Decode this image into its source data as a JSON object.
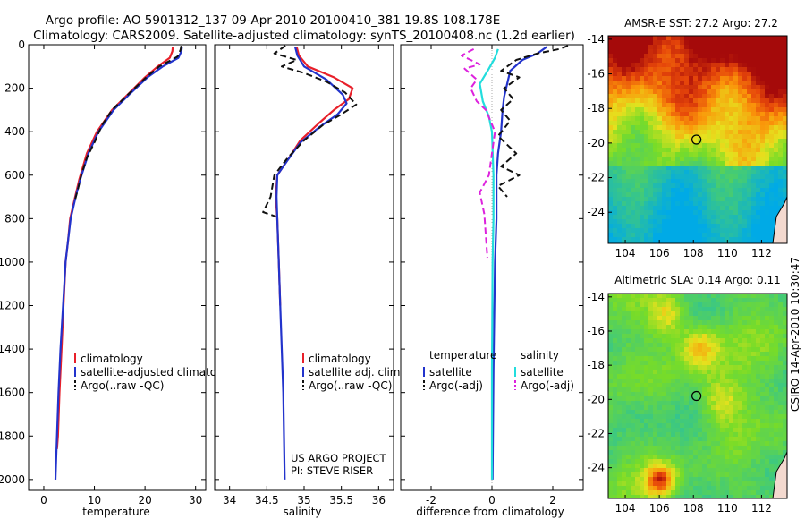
{
  "title_line1": "Argo profile: AO 5901312_137 09-Apr-2010 20100410_381 19.8S 108.178E",
  "title_line2": "Climatology: CARS2009. Satellite-adjusted climatology: synTS_20100408.nc (1.2d earlier)",
  "side_stamp": "CSIRO 14-Apr-2010 10:30:47",
  "colors": {
    "clim": "#e8202a",
    "sat": "#2233cc",
    "argo": "#111111",
    "sal_sat": "#22dddd",
    "sal_argo": "#dd22dd"
  },
  "chart_data": [
    {
      "type": "line",
      "name": "temperature-profile",
      "xlabel": "temperature",
      "ylabel": "",
      "xlim": [
        -3,
        32
      ],
      "ylim": [
        2050,
        0
      ],
      "xticks": [
        "0",
        "10",
        "20",
        "30"
      ],
      "xtick_values": [
        0,
        10,
        20,
        30
      ],
      "yticks": [
        "0",
        "200",
        "400",
        "600",
        "800",
        "1000",
        "1200",
        "1400",
        "1600",
        "1800",
        "2000"
      ],
      "ytick_values": [
        0,
        200,
        400,
        600,
        800,
        1000,
        1200,
        1400,
        1600,
        1800,
        2000
      ],
      "legend": [
        "climatology",
        "satellite-adjusted climatology",
        "Argo(..raw -QC)"
      ],
      "series": [
        {
          "name": "climatology",
          "style": "solid",
          "color_key": "clim",
          "points": [
            [
              25.5,
              10
            ],
            [
              25.4,
              30
            ],
            [
              24.9,
              60
            ],
            [
              22.5,
              100
            ],
            [
              20,
              150
            ],
            [
              17,
              220
            ],
            [
              13.5,
              300
            ],
            [
              10.5,
              400
            ],
            [
              8.5,
              500
            ],
            [
              7,
              620
            ],
            [
              6.2,
              700
            ],
            [
              5.2,
              800
            ],
            [
              4.8,
              900
            ],
            [
              4.3,
              1000
            ],
            [
              3.9,
              1200
            ],
            [
              3.5,
              1400
            ],
            [
              3.1,
              1600
            ],
            [
              2.8,
              1800
            ],
            [
              2.6,
              1860
            ]
          ]
        },
        {
          "name": "satellite-adjusted climatology",
          "style": "solid",
          "color_key": "sat",
          "points": [
            [
              27.3,
              10
            ],
            [
              27.2,
              30
            ],
            [
              26.6,
              60
            ],
            [
              23.5,
              100
            ],
            [
              20.5,
              150
            ],
            [
              17.3,
              220
            ],
            [
              13.8,
              300
            ],
            [
              10.8,
              400
            ],
            [
              8.8,
              500
            ],
            [
              7.2,
              620
            ],
            [
              6.3,
              700
            ],
            [
              5.3,
              800
            ],
            [
              4.8,
              900
            ],
            [
              4.3,
              1000
            ],
            [
              3.8,
              1200
            ],
            [
              3.3,
              1400
            ],
            [
              2.9,
              1600
            ],
            [
              2.6,
              1800
            ],
            [
              2.3,
              2000
            ]
          ]
        },
        {
          "name": "Argo(..raw -QC)",
          "style": "dash",
          "color_key": "argo",
          "points": [
            [
              27.2,
              5
            ],
            [
              27,
              25
            ],
            [
              26.4,
              55
            ],
            [
              22.8,
              100
            ],
            [
              20,
              155
            ],
            [
              17.5,
              210
            ],
            [
              13.5,
              300
            ],
            [
              11.5,
              370
            ],
            [
              10.2,
              440
            ],
            [
              8.5,
              520
            ],
            [
              7.4,
              600
            ],
            [
              6.8,
              660
            ],
            [
              6.1,
              720
            ]
          ]
        }
      ]
    },
    {
      "type": "line",
      "name": "salinity-profile",
      "xlabel": "salinity",
      "xlim": [
        33.8,
        36.2
      ],
      "ylim": [
        2050,
        0
      ],
      "xticks": [
        "34",
        "34.5",
        "35",
        "35.5",
        "36"
      ],
      "xtick_values": [
        34,
        34.5,
        35,
        35.5,
        36
      ],
      "legend": [
        "climatology",
        "satellite adj. clim.",
        "Argo(..raw -QC)"
      ],
      "annotations": [
        "US ARGO PROJECT",
        "PI: STEVE RISER"
      ],
      "series": [
        {
          "name": "climatology",
          "style": "solid",
          "color_key": "clim",
          "points": [
            [
              34.9,
              10
            ],
            [
              34.93,
              50
            ],
            [
              35.05,
              100
            ],
            [
              35.4,
              150
            ],
            [
              35.65,
              200
            ],
            [
              35.6,
              250
            ],
            [
              35.4,
              300
            ],
            [
              35.2,
              360
            ],
            [
              34.95,
              440
            ],
            [
              34.8,
              520
            ],
            [
              34.64,
              600
            ],
            [
              34.62,
              700
            ],
            [
              34.64,
              800
            ],
            [
              34.66,
              1000
            ],
            [
              34.68,
              1200
            ]
          ]
        },
        {
          "name": "satellite adj. clim.",
          "style": "solid",
          "color_key": "sat",
          "points": [
            [
              34.88,
              10
            ],
            [
              34.91,
              50
            ],
            [
              35.0,
              100
            ],
            [
              35.3,
              160
            ],
            [
              35.52,
              230
            ],
            [
              35.57,
              270
            ],
            [
              35.45,
              320
            ],
            [
              35.2,
              380
            ],
            [
              34.95,
              450
            ],
            [
              34.78,
              530
            ],
            [
              34.64,
              600
            ],
            [
              34.63,
              700
            ],
            [
              34.64,
              800
            ],
            [
              34.66,
              1000
            ],
            [
              34.68,
              1200
            ],
            [
              34.7,
              1400
            ],
            [
              34.72,
              1600
            ],
            [
              34.73,
              1800
            ],
            [
              34.74,
              2000
            ]
          ]
        },
        {
          "name": "Argo(..raw -QC)",
          "style": "dash",
          "color_key": "argo",
          "points": [
            [
              34.75,
              5
            ],
            [
              34.6,
              40
            ],
            [
              34.9,
              70
            ],
            [
              34.7,
              100
            ],
            [
              35.0,
              130
            ],
            [
              35.3,
              170
            ],
            [
              35.55,
              220
            ],
            [
              35.7,
              275
            ],
            [
              35.5,
              320
            ],
            [
              35.25,
              370
            ],
            [
              35.0,
              440
            ],
            [
              34.78,
              520
            ],
            [
              34.6,
              600
            ],
            [
              34.55,
              700
            ],
            [
              34.45,
              770
            ],
            [
              34.62,
              790
            ]
          ]
        }
      ]
    },
    {
      "type": "line",
      "name": "difference-from-climatology",
      "xlabel": "difference from climatology",
      "xlim": [
        -3,
        3
      ],
      "ylim": [
        2050,
        0
      ],
      "xticks": [
        "-2",
        "0",
        "2"
      ],
      "xtick_values": [
        -2,
        0,
        2
      ],
      "legend_headers": [
        "temperature",
        "salinity"
      ],
      "legend": [
        "satellite",
        "Argo(-adj)",
        "satellite",
        "Argo(-adj)"
      ],
      "series": [
        {
          "name": "temperature satellite",
          "style": "solid",
          "color_key": "sat",
          "points": [
            [
              1.8,
              10
            ],
            [
              1.5,
              40
            ],
            [
              1.0,
              70
            ],
            [
              0.6,
              120
            ],
            [
              0.5,
              180
            ],
            [
              0.4,
              240
            ],
            [
              0.35,
              300
            ],
            [
              0.3,
              400
            ],
            [
              0.2,
              500
            ],
            [
              0.15,
              600
            ],
            [
              0.15,
              800
            ],
            [
              0.1,
              1000
            ],
            [
              0.05,
              1500
            ],
            [
              0.02,
              2000
            ]
          ]
        },
        {
          "name": "temperature Argo(-adj)",
          "style": "dash",
          "color_key": "argo",
          "points": [
            [
              2.5,
              5
            ],
            [
              2.2,
              20
            ],
            [
              1.5,
              40
            ],
            [
              0.8,
              70
            ],
            [
              0.3,
              120
            ],
            [
              0.9,
              150
            ],
            [
              0.4,
              200
            ],
            [
              0.7,
              250
            ],
            [
              0.3,
              300
            ],
            [
              0.6,
              350
            ],
            [
              0.2,
              420
            ],
            [
              0.8,
              500
            ],
            [
              0.3,
              560
            ],
            [
              0.9,
              600
            ],
            [
              0.2,
              650
            ],
            [
              0.5,
              700
            ]
          ]
        },
        {
          "name": "salinity satellite",
          "style": "solid",
          "color_key": "sal_sat",
          "points": [
            [
              0.2,
              20
            ],
            [
              0.1,
              60
            ],
            [
              -0.1,
              110
            ],
            [
              -0.4,
              180
            ],
            [
              -0.3,
              260
            ],
            [
              -0.1,
              330
            ],
            [
              0,
              400
            ],
            [
              0.05,
              600
            ],
            [
              0.05,
              800
            ],
            [
              0.02,
              1000
            ],
            [
              0,
              1500
            ],
            [
              0,
              2000
            ]
          ]
        },
        {
          "name": "salinity Argo(-adj)",
          "style": "dash",
          "color_key": "sal_argo",
          "points": [
            [
              -0.6,
              20
            ],
            [
              -1.0,
              50
            ],
            [
              -0.4,
              90
            ],
            [
              -0.9,
              110
            ],
            [
              -0.5,
              160
            ],
            [
              -0.7,
              200
            ],
            [
              -0.5,
              260
            ],
            [
              -0.2,
              300
            ],
            [
              0.1,
              400
            ],
            [
              -0.1,
              600
            ],
            [
              -0.4,
              680
            ],
            [
              -0.25,
              780
            ],
            [
              -0.15,
              980
            ]
          ]
        }
      ]
    },
    {
      "type": "heatmap",
      "name": "sst-map",
      "title": "AMSR-E SST: 27.2 Argo: 27.2",
      "xlim": [
        103,
        113.5
      ],
      "ylim": [
        -25.8,
        -13.8
      ],
      "xticks": [
        "104",
        "106",
        "108",
        "110",
        "112"
      ],
      "xtick_values": [
        104,
        106,
        108,
        110,
        112
      ],
      "yticks": [
        "-14",
        "-16",
        "-18",
        "-20",
        "-22",
        "-24"
      ],
      "ytick_values": [
        -14,
        -16,
        -18,
        -20,
        -22,
        -24
      ],
      "marker": [
        108.178,
        -19.8
      ]
    },
    {
      "type": "heatmap",
      "name": "sla-map",
      "title": "Altimetric SLA: 0.14 Argo: 0.11",
      "xlim": [
        103,
        113.5
      ],
      "ylim": [
        -25.8,
        -13.8
      ],
      "xticks": [
        "104",
        "106",
        "108",
        "110",
        "112"
      ],
      "xtick_values": [
        104,
        106,
        108,
        110,
        112
      ],
      "yticks": [
        "-14",
        "-16",
        "-18",
        "-20",
        "-22",
        "-24"
      ],
      "ytick_values": [
        -14,
        -16,
        -18,
        -20,
        -22,
        -24
      ],
      "marker": [
        108.178,
        -19.8
      ]
    }
  ]
}
